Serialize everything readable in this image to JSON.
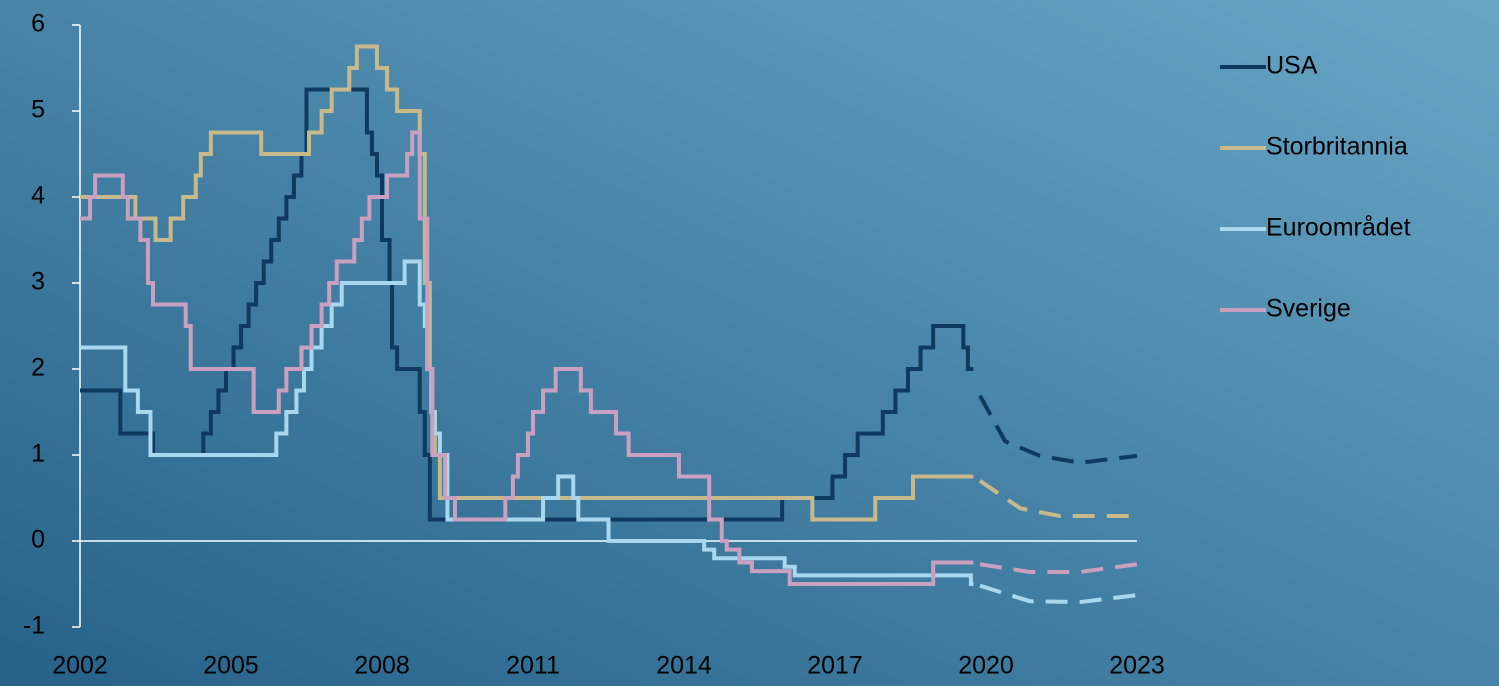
{
  "chart_data": {
    "type": "step-line",
    "xlim": [
      2002,
      2023
    ],
    "xticks": [
      2002,
      2005,
      2008,
      2011,
      2014,
      2017,
      2020,
      2023
    ],
    "ylim": [
      -1,
      6
    ],
    "yticks": [
      -1,
      0,
      1,
      2,
      3,
      4,
      5,
      6
    ],
    "legend": "right",
    "series": [
      {
        "name": "USA",
        "color": "#0d3a5e",
        "x": [
          2002,
          2002.8,
          2003.45,
          2004.45,
          2004.6,
          2004.75,
          2004.9,
          2005.05,
          2005.2,
          2005.35,
          2005.5,
          2005.65,
          2005.8,
          2005.95,
          2006.1,
          2006.25,
          2006.4,
          2006.5,
          2007.7,
          2007.8,
          2007.9,
          2008.0,
          2008.15,
          2008.2,
          2008.3,
          2008.75,
          2008.85,
          2008.95,
          2015.95,
          2016.95,
          2017.2,
          2017.45,
          2017.95,
          2018.2,
          2018.45,
          2018.7,
          2018.95,
          2019.55,
          2019.64,
          2019.75
        ],
        "values": [
          1.75,
          1.25,
          1.0,
          1.25,
          1.5,
          1.75,
          2.0,
          2.25,
          2.5,
          2.75,
          3.0,
          3.25,
          3.5,
          3.75,
          4.0,
          4.25,
          4.5,
          5.25,
          4.75,
          4.5,
          4.25,
          3.5,
          3.0,
          2.25,
          2.0,
          1.5,
          1.0,
          0.25,
          0.5,
          0.75,
          1.0,
          1.25,
          1.5,
          1.75,
          2.0,
          2.25,
          2.5,
          2.25,
          2.0,
          2.0
        ],
        "forecast": {
          "x": [
            2019.88,
            2020.38,
            2021.07,
            2021.87,
            2023
          ],
          "values": [
            1.69,
            1.16,
            0.99,
            0.91,
            0.99
          ]
        }
      },
      {
        "name": "Storbritannia",
        "color": "#c8b98a",
        "x": [
          2002,
          2003.1,
          2003.5,
          2003.8,
          2004.05,
          2004.3,
          2004.4,
          2004.6,
          2005.6,
          2006.55,
          2006.8,
          2007.0,
          2007.35,
          2007.5,
          2007.9,
          2008.1,
          2008.3,
          2008.75,
          2008.85,
          2008.95,
          2009.0,
          2009.05,
          2009.15,
          2016.55,
          2017.8,
          2018.55,
          2019.75
        ],
        "values": [
          4.0,
          3.75,
          3.5,
          3.75,
          4.0,
          4.25,
          4.5,
          4.75,
          4.5,
          4.75,
          5.0,
          5.25,
          5.5,
          5.75,
          5.5,
          5.25,
          5.0,
          4.5,
          3.0,
          2.0,
          1.5,
          1.0,
          0.5,
          0.25,
          0.5,
          0.75,
          0.75
        ],
        "forecast": {
          "x": [
            2019.88,
            2020.68,
            2021.47,
            2023
          ],
          "values": [
            0.7,
            0.38,
            0.29,
            0.29
          ]
        }
      },
      {
        "name": "Euroområdet",
        "color": "#a8d8f0",
        "x": [
          2002,
          2002.9,
          2003.15,
          2003.4,
          2005.9,
          2006.1,
          2006.3,
          2006.45,
          2006.6,
          2006.8,
          2007.0,
          2007.2,
          2008.45,
          2008.75,
          2008.85,
          2008.9,
          2008.98,
          2009.05,
          2009.15,
          2009.3,
          2011.2,
          2011.5,
          2011.8,
          2011.9,
          2012.5,
          2014.4,
          2014.6,
          2016.0,
          2016.2,
          2019.7,
          2019.75
        ],
        "values": [
          2.25,
          1.75,
          1.5,
          1.0,
          1.25,
          1.5,
          1.75,
          2.0,
          2.25,
          2.5,
          2.75,
          3.0,
          3.25,
          2.75,
          2.5,
          2.0,
          1.5,
          1.25,
          1.0,
          0.25,
          0.5,
          0.75,
          0.5,
          0.25,
          0.0,
          -0.1,
          -0.2,
          -0.3,
          -0.4,
          -0.5,
          -0.5
        ],
        "forecast": {
          "x": [
            2019.88,
            2020.87,
            2021.87,
            2023
          ],
          "values": [
            -0.52,
            -0.7,
            -0.71,
            -0.63
          ]
        }
      },
      {
        "name": "Sverige",
        "color": "#c9a0c0",
        "x": [
          2002,
          2002.2,
          2002.3,
          2002.85,
          2002.95,
          2003.2,
          2003.35,
          2003.45,
          2004.1,
          2004.2,
          2005.45,
          2005.95,
          2006.1,
          2006.4,
          2006.6,
          2006.8,
          2006.95,
          2007.1,
          2007.45,
          2007.6,
          2007.75,
          2008.1,
          2008.5,
          2008.6,
          2008.75,
          2008.9,
          2009.0,
          2009.25,
          2009.45,
          2010.45,
          2010.6,
          2010.7,
          2010.9,
          2011.0,
          2011.2,
          2011.45,
          2011.95,
          2012.15,
          2012.65,
          2012.9,
          2013.9,
          2014.5,
          2014.75,
          2014.85,
          2015.1,
          2015.35,
          2016.1,
          2018.95,
          2019.75
        ],
        "values": [
          3.75,
          4.0,
          4.25,
          4.0,
          3.75,
          3.5,
          3.0,
          2.75,
          2.5,
          2.0,
          1.5,
          1.75,
          2.0,
          2.25,
          2.5,
          2.75,
          3.0,
          3.25,
          3.5,
          3.75,
          4.0,
          4.25,
          4.5,
          4.75,
          3.75,
          2.0,
          1.0,
          0.5,
          0.25,
          0.5,
          0.75,
          1.0,
          1.25,
          1.5,
          1.75,
          2.0,
          1.75,
          1.5,
          1.25,
          1.0,
          0.75,
          0.25,
          0.0,
          -0.1,
          -0.25,
          -0.35,
          -0.5,
          -0.25,
          -0.25
        ],
        "forecast": {
          "x": [
            2019.88,
            2020.87,
            2021.87,
            2023
          ],
          "values": [
            -0.27,
            -0.36,
            -0.36,
            -0.27
          ]
        }
      }
    ]
  }
}
